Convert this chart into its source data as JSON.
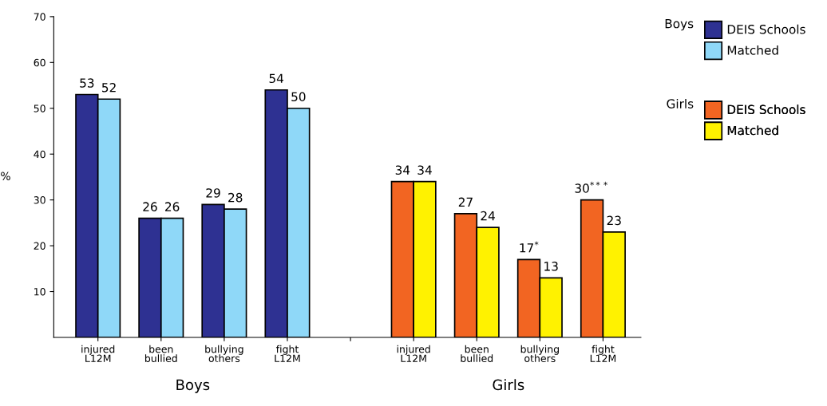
{
  "chart_data": {
    "type": "bar",
    "ylabel": "%",
    "categories": [
      "injured\nL12M",
      "been\nbullied",
      "bullying\nothers",
      "fight\nL12M",
      null,
      "injured\nL12M",
      "been\nbullied",
      "bullying\nothers",
      "fight\nL12M"
    ],
    "series": [
      {
        "name": "DEIS Schools",
        "color": "#2e3192",
        "values": [
          53,
          26,
          29,
          54,
          null,
          null,
          null,
          null,
          null
        ],
        "value_labels": [
          "53",
          "26",
          "29",
          "54",
          null,
          null,
          null,
          null,
          null
        ]
      },
      {
        "name": "Matched",
        "color": "#8fd8f8",
        "values": [
          52,
          26,
          28,
          50,
          null,
          null,
          null,
          null,
          null
        ],
        "value_labels": [
          "52",
          "26",
          "28",
          "50",
          null,
          null,
          null,
          null,
          null
        ]
      },
      {
        "name": "DEIS Schools",
        "color": "#f26522",
        "values": [
          null,
          null,
          null,
          null,
          null,
          34,
          27,
          17,
          30
        ],
        "value_labels": [
          null,
          null,
          null,
          null,
          null,
          "34",
          "27",
          "17$^{*}$",
          "30$^{***}$"
        ]
      },
      {
        "name": "Matched",
        "color": "#fff200",
        "values": [
          null,
          null,
          null,
          null,
          null,
          34,
          24,
          13,
          23
        ],
        "value_labels": [
          null,
          null,
          null,
          null,
          null,
          "34",
          "24",
          "13",
          "23"
        ]
      }
    ],
    "annotations": [
      "Boys",
      "Girls"
    ],
    "ylim": [
      0,
      70
    ],
    "yticks": [
      10,
      20,
      30,
      40,
      50,
      60,
      70
    ],
    "grid": false,
    "legend": "top right"
  }
}
